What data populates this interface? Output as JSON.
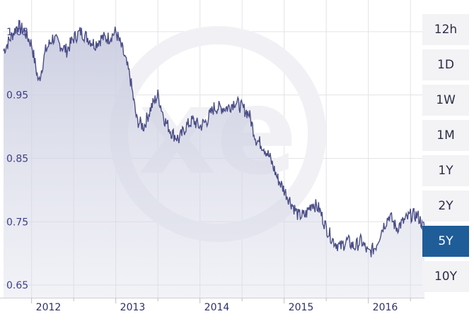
{
  "chart_data": {
    "type": "area",
    "ylim": [
      0.63,
      1.1
    ],
    "yticks": [
      "1.05",
      "0.95",
      "0.85",
      "0.75",
      "0.65"
    ],
    "xticks": [
      "2012",
      "2013",
      "2014",
      "2015",
      "2016"
    ],
    "grid": true,
    "series": [
      {
        "x": [
          "2011-09",
          "2011-10",
          "2011-11",
          "2011-12",
          "2012-01",
          "2012-02",
          "2012-03",
          "2012-04",
          "2012-05",
          "2012-06",
          "2012-07",
          "2012-08",
          "2012-09",
          "2012-10",
          "2012-11",
          "2012-12",
          "2013-01",
          "2013-02",
          "2013-03",
          "2013-04",
          "2013-05",
          "2013-06",
          "2013-07",
          "2013-08",
          "2013-09",
          "2013-10",
          "2013-11",
          "2013-12",
          "2014-01",
          "2014-02",
          "2014-03",
          "2014-04",
          "2014-05",
          "2014-06",
          "2014-07",
          "2014-08",
          "2014-09",
          "2014-10",
          "2014-11",
          "2014-12",
          "2015-01",
          "2015-02",
          "2015-03",
          "2015-04",
          "2015-05",
          "2015-06",
          "2015-07",
          "2015-08",
          "2015-09",
          "2015-10",
          "2015-11",
          "2015-12",
          "2016-01",
          "2016-02",
          "2016-03",
          "2016-04",
          "2016-05",
          "2016-06",
          "2016-07",
          "2016-08",
          "2016-09"
        ],
        "values": [
          1.02,
          1.04,
          1.06,
          1.05,
          1.03,
          0.97,
          1.02,
          1.04,
          1.03,
          1.02,
          1.04,
          1.05,
          1.04,
          1.03,
          1.04,
          1.04,
          1.05,
          1.02,
          0.98,
          0.91,
          0.9,
          0.93,
          0.95,
          0.91,
          0.89,
          0.88,
          0.9,
          0.91,
          0.9,
          0.91,
          0.93,
          0.93,
          0.93,
          0.94,
          0.93,
          0.92,
          0.88,
          0.87,
          0.85,
          0.82,
          0.8,
          0.78,
          0.76,
          0.76,
          0.78,
          0.77,
          0.74,
          0.72,
          0.71,
          0.72,
          0.71,
          0.72,
          0.7,
          0.71,
          0.74,
          0.76,
          0.74,
          0.75,
          0.76,
          0.76,
          0.74
        ]
      }
    ]
  },
  "range_buttons": [
    {
      "label": "12h"
    },
    {
      "label": "1D"
    },
    {
      "label": "1W"
    },
    {
      "label": "1M"
    },
    {
      "label": "1Y"
    },
    {
      "label": "2Y"
    },
    {
      "label": "5Y",
      "active": true
    },
    {
      "label": "10Y"
    }
  ],
  "colors": {
    "line": "#4a4d86",
    "fill": "#d9dbe8",
    "active_button": "#1f5d98",
    "button": "#f3f3f6",
    "grid": "#e3e3e8"
  },
  "watermark": "xe-logo-icon"
}
